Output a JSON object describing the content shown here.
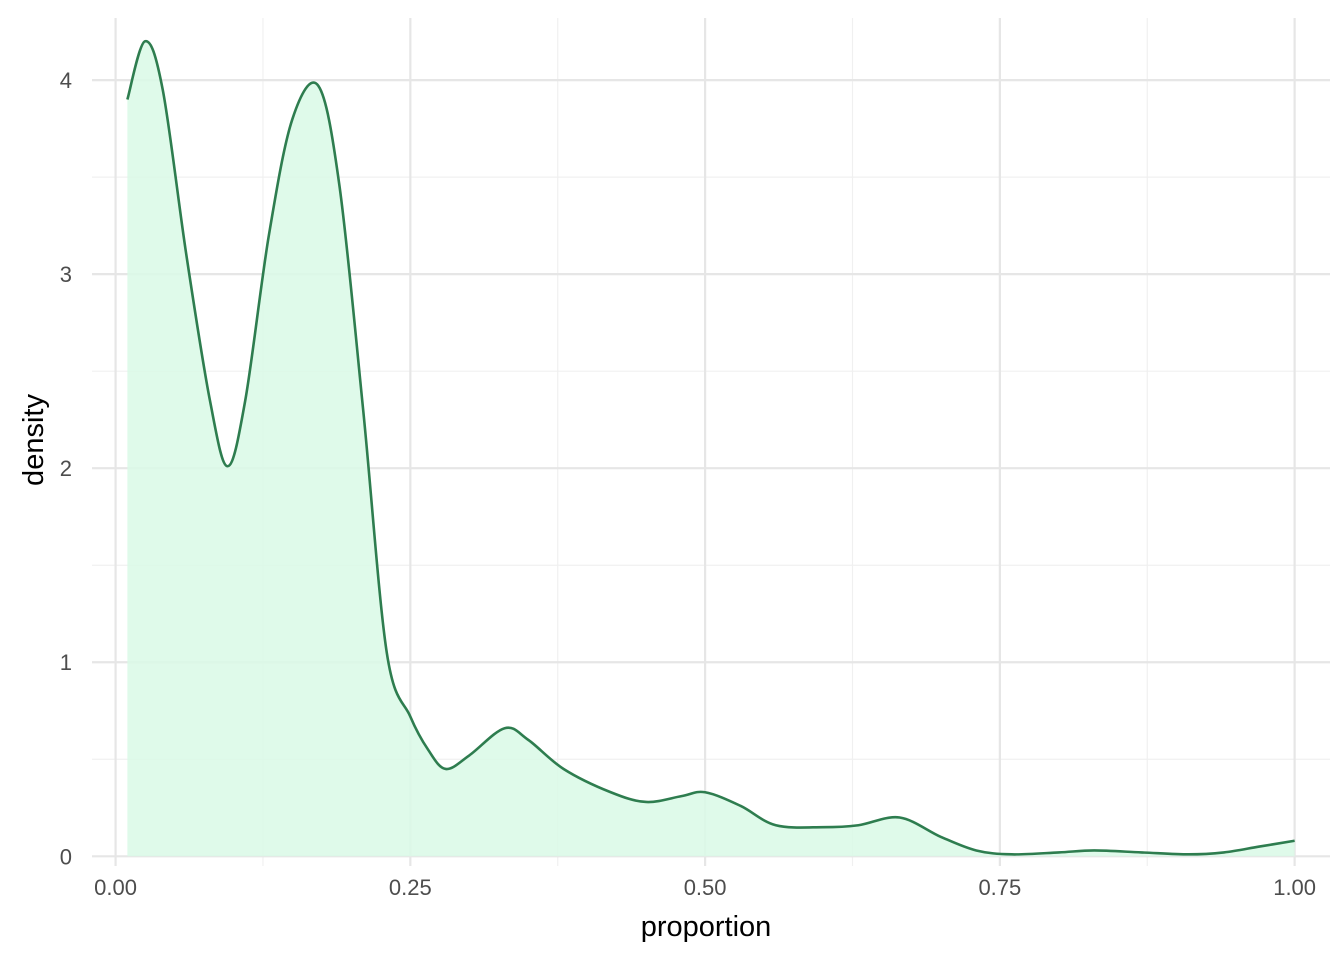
{
  "chart_data": {
    "type": "area",
    "title": "",
    "xlabel": "proportion",
    "ylabel": "density",
    "xlim": [
      -0.02,
      1.03
    ],
    "ylim": [
      -0.05,
      4.32
    ],
    "x_ticks": [
      0.0,
      0.25,
      0.5,
      0.75,
      1.0
    ],
    "x_tick_labels": [
      "0.00",
      "0.25",
      "0.50",
      "0.75",
      "1.00"
    ],
    "y_ticks": [
      0,
      1,
      2,
      3,
      4
    ],
    "y_tick_labels": [
      "0",
      "1",
      "2",
      "3",
      "4"
    ],
    "grid": true,
    "legend": "none",
    "series": [
      {
        "x": [
          0.01,
          0.025,
          0.04,
          0.06,
          0.08,
          0.095,
          0.11,
          0.13,
          0.15,
          0.172,
          0.19,
          0.21,
          0.23,
          0.25,
          0.265,
          0.28,
          0.3,
          0.33,
          0.35,
          0.38,
          0.42,
          0.45,
          0.48,
          0.5,
          0.53,
          0.56,
          0.6,
          0.63,
          0.665,
          0.7,
          0.73,
          0.76,
          0.8,
          0.83,
          0.87,
          0.91,
          0.94,
          0.97,
          1.0
        ],
        "y": [
          3.9,
          4.2,
          3.95,
          3.1,
          2.35,
          2.01,
          2.35,
          3.2,
          3.8,
          3.97,
          3.45,
          2.3,
          1.05,
          0.72,
          0.55,
          0.45,
          0.52,
          0.66,
          0.6,
          0.45,
          0.33,
          0.28,
          0.31,
          0.33,
          0.26,
          0.16,
          0.15,
          0.16,
          0.2,
          0.1,
          0.03,
          0.01,
          0.02,
          0.03,
          0.02,
          0.01,
          0.02,
          0.05,
          0.08
        ]
      }
    ],
    "colors": {
      "line": "#2e7d4f",
      "fill": "#d9f9e6",
      "grid_major": "#e6e6e6",
      "grid_minor": "#f0f0f0",
      "tick_text": "#4d4d4d"
    }
  }
}
